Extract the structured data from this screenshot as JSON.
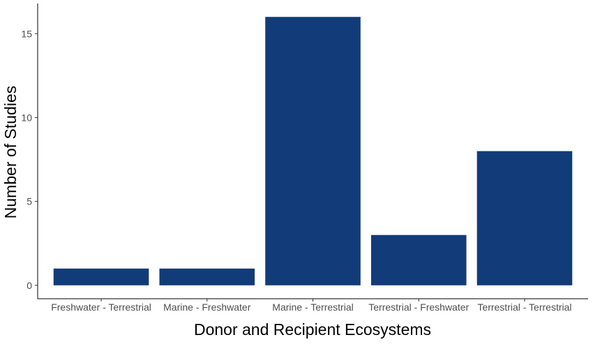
{
  "chart_data": {
    "type": "bar",
    "categories": [
      "Freshwater - Terrestrial",
      "Marine - Freshwater",
      "Marine - Terrestrial",
      "Terrestrial - Freshwater",
      "Terrestrial - Terrestrial"
    ],
    "values": [
      1,
      1,
      16,
      3,
      8
    ],
    "xlabel": "Donor and Recipient Ecosystems",
    "ylabel": "Number of Studies",
    "ylim": [
      -0.8,
      16.8
    ],
    "yticks": [
      0,
      5,
      10,
      15
    ],
    "grid": false,
    "legend": "none",
    "bar_color": "#123b79"
  }
}
